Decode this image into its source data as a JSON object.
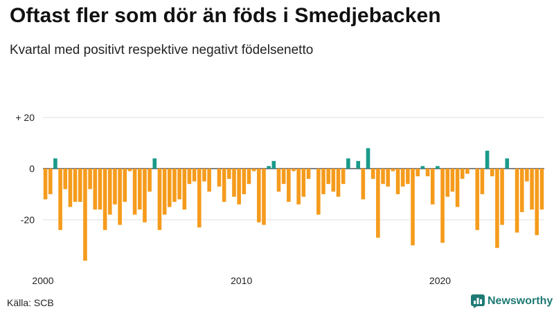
{
  "header": {
    "title": "Oftast fler som dör än föds i Smedjebacken",
    "subtitle": "Kvartal med positivt respektive negativt födelsenetto"
  },
  "footer": {
    "source": "Källa: SCB",
    "brand": "Newsworthy"
  },
  "colors": {
    "positive": "#1a9a8a",
    "negative": "#f59b1c",
    "zero_line": "#333333",
    "grid": "#dddddd",
    "brand": "#1e7a74"
  },
  "chart_data": {
    "type": "bar",
    "title": "Oftast fler som dör än föds i Smedjebacken",
    "subtitle": "Kvartal med positivt respektive negativt födelsenetto",
    "xlabel": "",
    "ylabel": "",
    "ylim": [
      -38,
      24
    ],
    "y_ticks": [
      {
        "value": 20,
        "label": "+ 20"
      },
      {
        "value": 0,
        "label": "0"
      },
      {
        "value": -20,
        "label": "-20"
      }
    ],
    "x_ticks": [
      {
        "label": "2000",
        "index": 0
      },
      {
        "label": "2010",
        "index": 40
      },
      {
        "label": "2020",
        "index": 80
      }
    ],
    "grid": true,
    "start": "2000 Q1",
    "frequency": "quarter",
    "values": [
      -12,
      -10,
      4,
      -24,
      -8,
      -15,
      -13,
      -13,
      -36,
      -8,
      -16,
      -16,
      -24,
      -18,
      -14,
      -22,
      -13,
      -1,
      -18,
      -16,
      -21,
      -9,
      4,
      -24,
      -18,
      -15,
      -13,
      -12,
      -16,
      -6,
      -5,
      -23,
      -5,
      -9,
      0,
      -7,
      -13,
      -4,
      -11,
      -14,
      -10,
      -6,
      -1,
      -21,
      -22,
      1,
      3,
      -9,
      -6,
      -13,
      -1,
      -14,
      -11,
      -4,
      0,
      -18,
      -10,
      -6,
      -9,
      -11,
      -6,
      4,
      0,
      3,
      -12,
      8,
      -4,
      -27,
      -6,
      -7,
      -1,
      -10,
      -7,
      -6,
      -30,
      -3,
      1,
      -3,
      -14,
      1,
      -29,
      -11,
      -9,
      -15,
      -4,
      -2,
      0,
      -24,
      -10,
      7,
      -3,
      -31,
      -22,
      4,
      0,
      -25,
      -17,
      -5,
      -16,
      -26,
      -16
    ]
  }
}
